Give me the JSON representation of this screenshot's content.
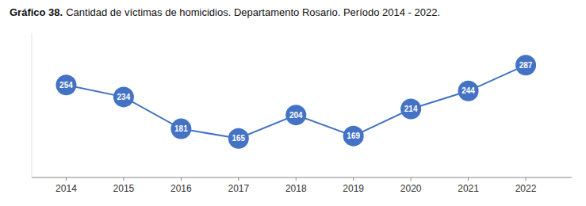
{
  "chart_data": {
    "type": "line",
    "title": "Gráfico 38.",
    "subtitle": "Cantidad de víctimas de homicidios. Departamento Rosario. Período 2014 - 2022.",
    "x": [
      2014,
      2015,
      2016,
      2017,
      2018,
      2019,
      2020,
      2021,
      2022
    ],
    "values": [
      254,
      234,
      181,
      165,
      204,
      169,
      214,
      244,
      287
    ],
    "color": "#4472C4",
    "marker": "circle",
    "data_labels": true,
    "tick_labels": "x",
    "xlim": [
      2013.4,
      2022.8
    ],
    "xticks": [
      2014,
      2015,
      2016,
      2017,
      2018,
      2019,
      2020,
      2021,
      2022
    ],
    "ylim": [
      100,
      340
    ],
    "grid": false
  }
}
